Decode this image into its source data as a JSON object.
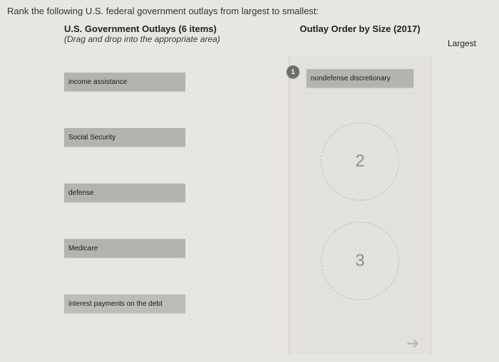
{
  "prompt": "Rank the following U.S. federal government outlays from largest to smallest:",
  "left": {
    "title": "U.S. Government Outlays (6 items)",
    "subtitle": "(Drag and drop into the appropriate area)",
    "items": [
      "income assistance",
      "Social Security",
      "defense",
      "Medicare",
      "interest payments on the debt"
    ]
  },
  "right": {
    "title": "Outlay Order by Size (2017)",
    "top_label": "Largest",
    "slots": [
      {
        "rank": "1",
        "value": "nondefense discretionary"
      },
      {
        "rank": "2",
        "value": null
      },
      {
        "rank": "3",
        "value": null
      }
    ]
  },
  "colors": {
    "page_bg": "#e8e6e1",
    "chip_bg": "#b4b3ae",
    "badge_bg": "#6e6e6e",
    "slot_border": "#bfbdb6"
  }
}
